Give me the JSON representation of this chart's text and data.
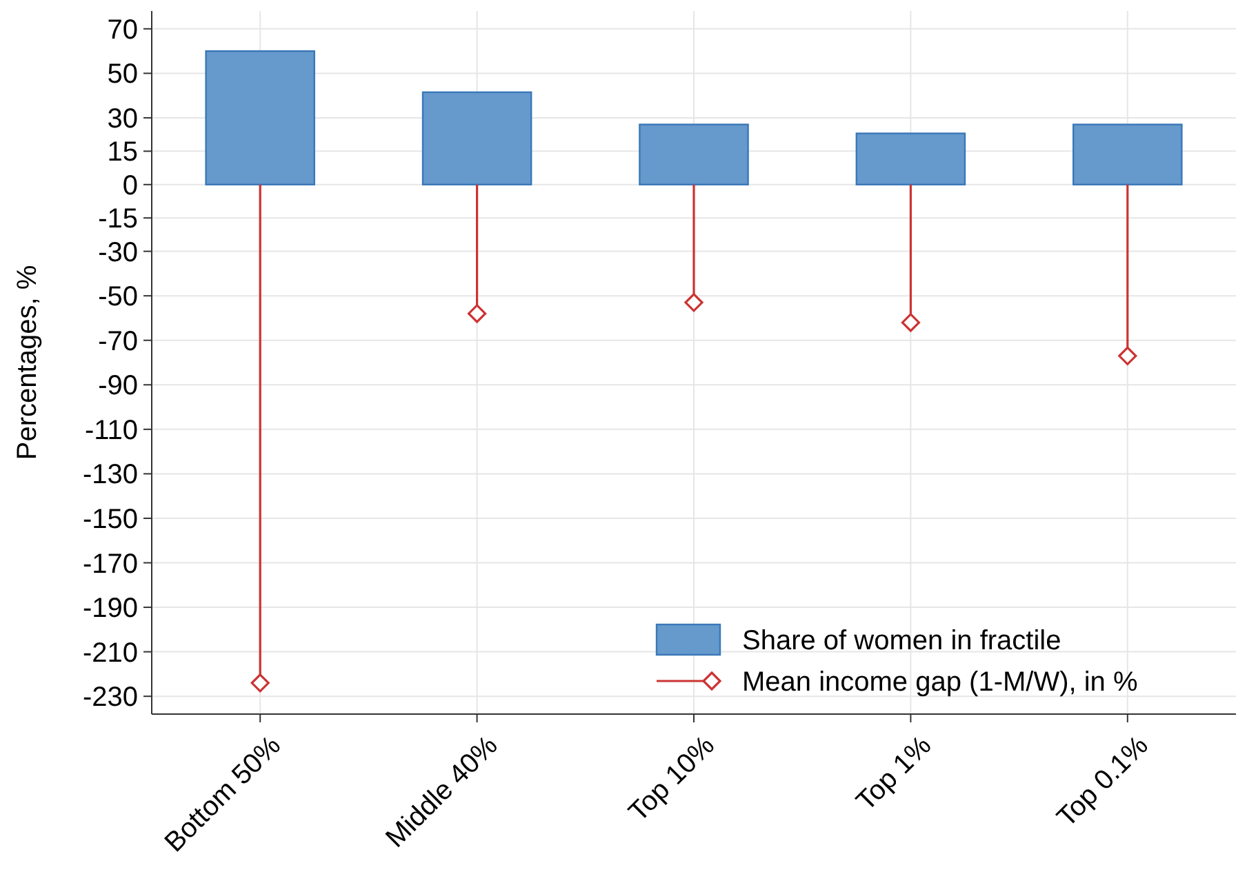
{
  "chart_data": {
    "type": "bar",
    "ylabel": "Percentages, %",
    "categories": [
      "Bottom 50%",
      "Middle 40%",
      "Top 10%",
      "Top 1%",
      "Top 0.1%"
    ],
    "series": [
      {
        "name": "Share of women in fractile",
        "color": "#6699cc",
        "values": [
          60,
          41.5,
          27,
          23,
          27
        ]
      },
      {
        "name": "Mean income gap (1-M/W), in %",
        "type": "lollipop",
        "color": "#cc3333",
        "marker": "diamond",
        "values": [
          -224,
          -58,
          -53,
          -62,
          -77
        ]
      }
    ],
    "ylim": [
      -238,
      78
    ],
    "yticks": [
      70,
      50,
      30,
      15,
      0,
      -15,
      -30,
      -50,
      -70,
      -90,
      -110,
      -130,
      -150,
      -170,
      -190,
      -210,
      -230
    ],
    "grid": true,
    "legend": "bottom right"
  }
}
